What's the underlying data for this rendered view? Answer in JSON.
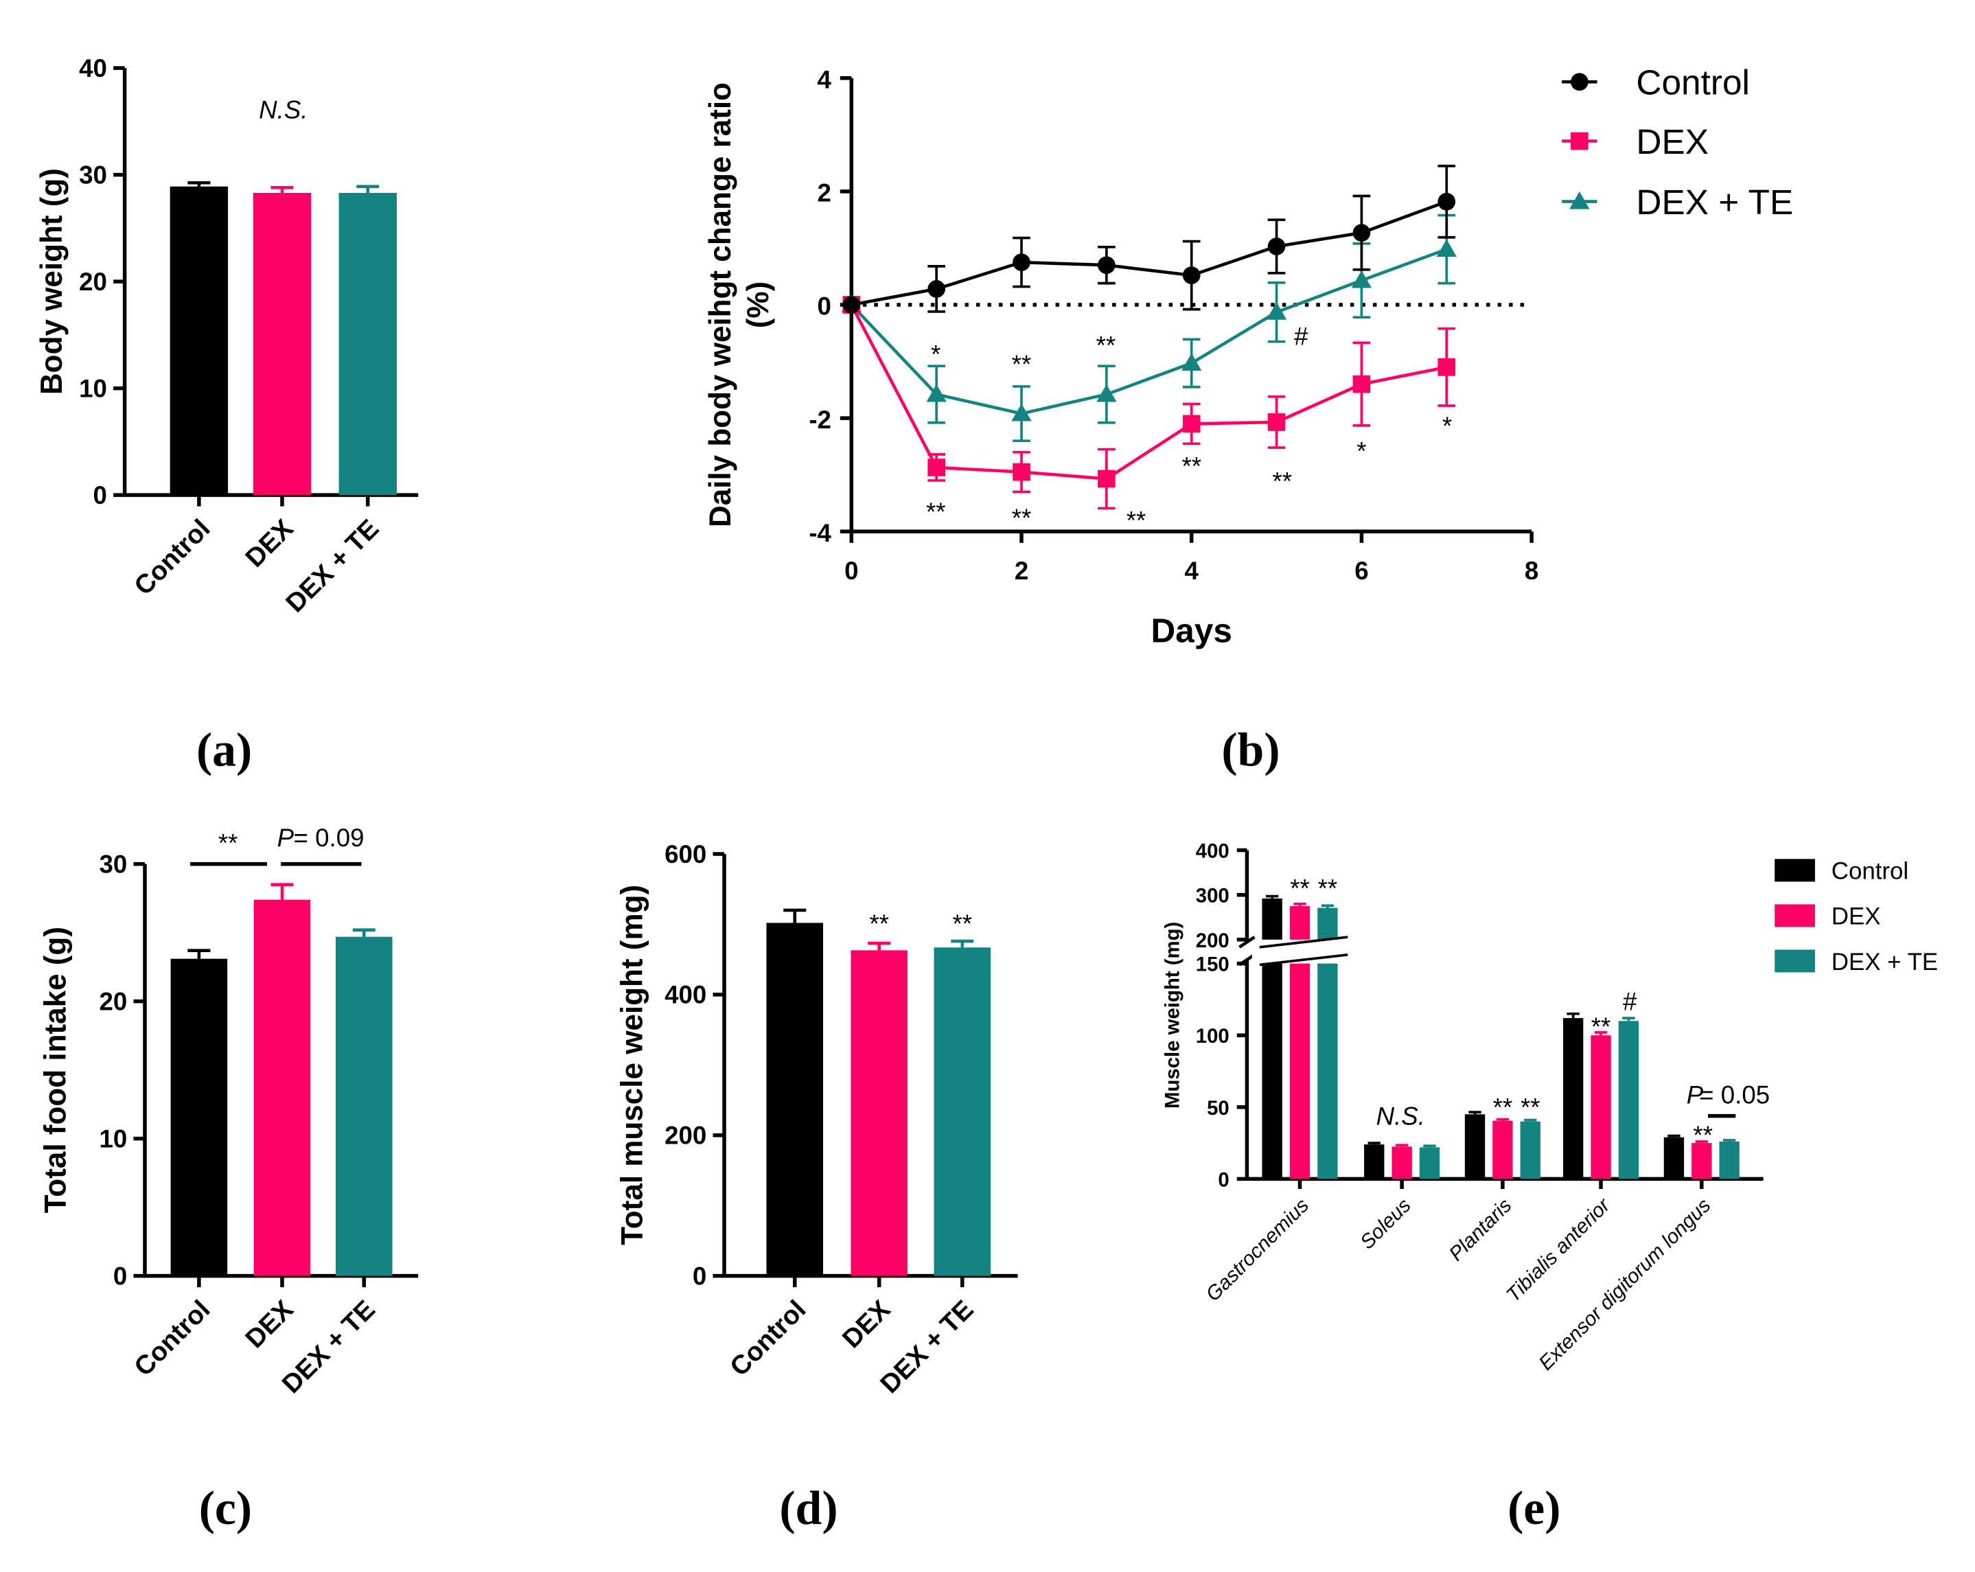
{
  "colors": {
    "control": "#000000",
    "dex": "#ff0066",
    "dexte": "#138481"
  },
  "groups": [
    "Control",
    "DEX",
    "DEX + TE"
  ],
  "panel_labels": {
    "a": "(a)",
    "b": "(b)",
    "c": "(c)",
    "d": "(d)",
    "e": "(e)"
  },
  "chart_data": [
    {
      "id": "a",
      "type": "bar",
      "ylabel": "Body weight (g)",
      "categories": [
        "Control",
        "DEX",
        "DEX + TE"
      ],
      "values": [
        28.9,
        28.3,
        28.3
      ],
      "errors": [
        0.35,
        0.5,
        0.6
      ],
      "ylim": [
        0,
        40
      ],
      "yticks": [
        "0",
        "10",
        "20",
        "30",
        "40"
      ],
      "annotations": {
        "ns": "N.S."
      }
    },
    {
      "id": "b",
      "type": "line",
      "xlabel": "Days",
      "ylabel_line1": "Daily body weihgt change ratio",
      "ylabel_line2": "(%)",
      "xlim": [
        0,
        8
      ],
      "ylim": [
        -4,
        4
      ],
      "xticks": [
        "0",
        "2",
        "4",
        "6",
        "8"
      ],
      "yticks": [
        "-4",
        "-2",
        "0",
        "2",
        "4"
      ],
      "x": [
        0,
        1,
        2,
        3,
        4,
        5,
        6,
        7
      ],
      "series": [
        {
          "name": "Control",
          "values": [
            0,
            0.28,
            0.75,
            0.7,
            0.52,
            1.03,
            1.27,
            1.82
          ],
          "errors": [
            0,
            0.4,
            0.43,
            0.32,
            0.6,
            0.47,
            0.65,
            0.63
          ]
        },
        {
          "name": "DEX",
          "values": [
            0,
            -2.87,
            -2.95,
            -3.07,
            -2.1,
            -2.07,
            -1.4,
            -1.1
          ],
          "errors": [
            0,
            0.23,
            0.35,
            0.52,
            0.35,
            0.45,
            0.73,
            0.68
          ]
        },
        {
          "name": "DEX + TE",
          "values": [
            0,
            -1.58,
            -1.92,
            -1.58,
            -1.03,
            -0.13,
            0.43,
            0.98
          ],
          "errors": [
            0,
            0.5,
            0.48,
            0.5,
            0.42,
            0.52,
            0.65,
            0.6
          ]
        }
      ],
      "annotations": {
        "dexte": [
          "*",
          "**",
          "**"
        ],
        "dex": [
          "**",
          "**",
          "**",
          "**",
          "**",
          "*",
          "*"
        ],
        "hash": "#"
      }
    },
    {
      "id": "c",
      "type": "bar",
      "ylabel": "Total food intake (g)",
      "categories": [
        "Control",
        "DEX",
        "DEX + TE"
      ],
      "values": [
        23.1,
        27.4,
        24.7
      ],
      "errors": [
        0.6,
        1.1,
        0.5
      ],
      "ylim": [
        0,
        30
      ],
      "yticks": [
        "0",
        "10",
        "20",
        "30"
      ],
      "annotations": {
        "sig": "**",
        "p_label": "P",
        "p_value": " = 0.09"
      }
    },
    {
      "id": "d",
      "type": "bar",
      "ylabel": "Total muscle weight (mg)",
      "categories": [
        "Control",
        "DEX",
        "DEX + TE"
      ],
      "values": [
        502,
        463,
        467
      ],
      "errors": [
        18,
        10,
        9
      ],
      "ylim": [
        0,
        600
      ],
      "yticks": [
        "0",
        "200",
        "400",
        "600"
      ],
      "annotations": {
        "dex": "**",
        "dexte": "**"
      }
    },
    {
      "id": "e",
      "type": "bar",
      "ylabel": "Muscle weight (mg)",
      "categories": [
        "Gastrocnemius",
        "Soleus",
        "Plantaris",
        "Tibialis anterior",
        "Extensor digitorum longus"
      ],
      "series": [
        {
          "name": "Control",
          "values": [
            292,
            24,
            45,
            112,
            29
          ],
          "errors": [
            5,
            1,
            1.5,
            3,
            1
          ]
        },
        {
          "name": "DEX",
          "values": [
            275,
            22.5,
            40.5,
            100,
            25
          ],
          "errors": [
            5,
            1,
            1,
            2,
            1
          ]
        },
        {
          "name": "DEX + TE",
          "values": [
            271,
            22,
            40,
            110,
            26
          ],
          "errors": [
            5,
            1,
            1,
            2,
            1
          ]
        }
      ],
      "axis_break": [
        150,
        200
      ],
      "ylim": [
        0,
        400
      ],
      "yticks_lower": [
        "0",
        "50",
        "100",
        "150"
      ],
      "yticks_upper": [
        "200",
        "300",
        "400"
      ],
      "annotations": {
        "gastro": [
          "**",
          "**"
        ],
        "soleus_ns": "N.S.",
        "plantaris": [
          "**",
          "**"
        ],
        "tibialis_dex": "**",
        "tibialis_hash": "#",
        "edl_dex": "**",
        "p_label": "P",
        "p_value": " = 0.05"
      }
    }
  ]
}
